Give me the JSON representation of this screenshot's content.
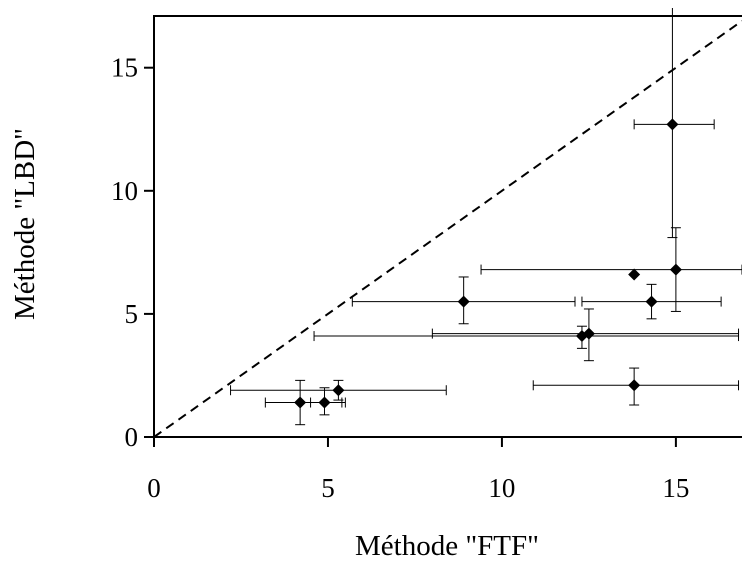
{
  "chart_data": {
    "type": "scatter",
    "title": "",
    "xlabel": "Méthode \"FTF\"",
    "ylabel": "Méthode \"LBD\"",
    "xlim": [
      0,
      16.9
    ],
    "ylim": [
      0,
      17.1
    ],
    "x_ticks": [
      0,
      5,
      10,
      15
    ],
    "y_ticks": [
      0,
      5,
      10,
      15
    ],
    "x_tick_labels": [
      "0",
      "5",
      "10",
      "15"
    ],
    "y_tick_labels": [
      "0",
      "5",
      "10",
      "15"
    ],
    "reference_line": {
      "style": "dashed",
      "from": [
        0,
        0
      ],
      "to": [
        16.9,
        16.9
      ]
    },
    "grid": false,
    "marker": "diamond",
    "points": [
      {
        "x": 14.9,
        "y": 12.7,
        "xerr": [
          13.8,
          16.1
        ],
        "yerr": [
          8.1,
          17.5
        ]
      },
      {
        "x": 13.8,
        "y": 6.6,
        "xerr": null,
        "yerr": null
      },
      {
        "x": 15.0,
        "y": 6.8,
        "xerr": [
          9.4,
          16.9
        ],
        "yerr": [
          5.1,
          8.5
        ]
      },
      {
        "x": 8.9,
        "y": 5.5,
        "xerr": [
          5.7,
          12.1
        ],
        "yerr": [
          4.6,
          6.5
        ]
      },
      {
        "x": 14.3,
        "y": 5.5,
        "xerr": [
          12.3,
          16.3
        ],
        "yerr": [
          4.8,
          6.2
        ]
      },
      {
        "x": 12.3,
        "y": 4.1,
        "xerr": [
          4.6,
          16.8
        ],
        "yerr": [
          3.6,
          4.5
        ]
      },
      {
        "x": 12.5,
        "y": 4.2,
        "xerr": [
          8.0,
          16.8
        ],
        "yerr": [
          3.1,
          5.2
        ]
      },
      {
        "x": 13.8,
        "y": 2.1,
        "xerr": [
          10.9,
          16.8
        ],
        "yerr": [
          1.3,
          2.8
        ]
      },
      {
        "x": 5.3,
        "y": 1.9,
        "xerr": [
          2.2,
          8.4
        ],
        "yerr": [
          1.5,
          2.3
        ]
      },
      {
        "x": 4.9,
        "y": 1.4,
        "xerr": [
          4.5,
          5.5
        ],
        "yerr": [
          0.9,
          2.0
        ]
      },
      {
        "x": 4.2,
        "y": 1.4,
        "xerr": [
          3.2,
          5.4
        ],
        "yerr": [
          0.5,
          2.3
        ]
      }
    ]
  }
}
